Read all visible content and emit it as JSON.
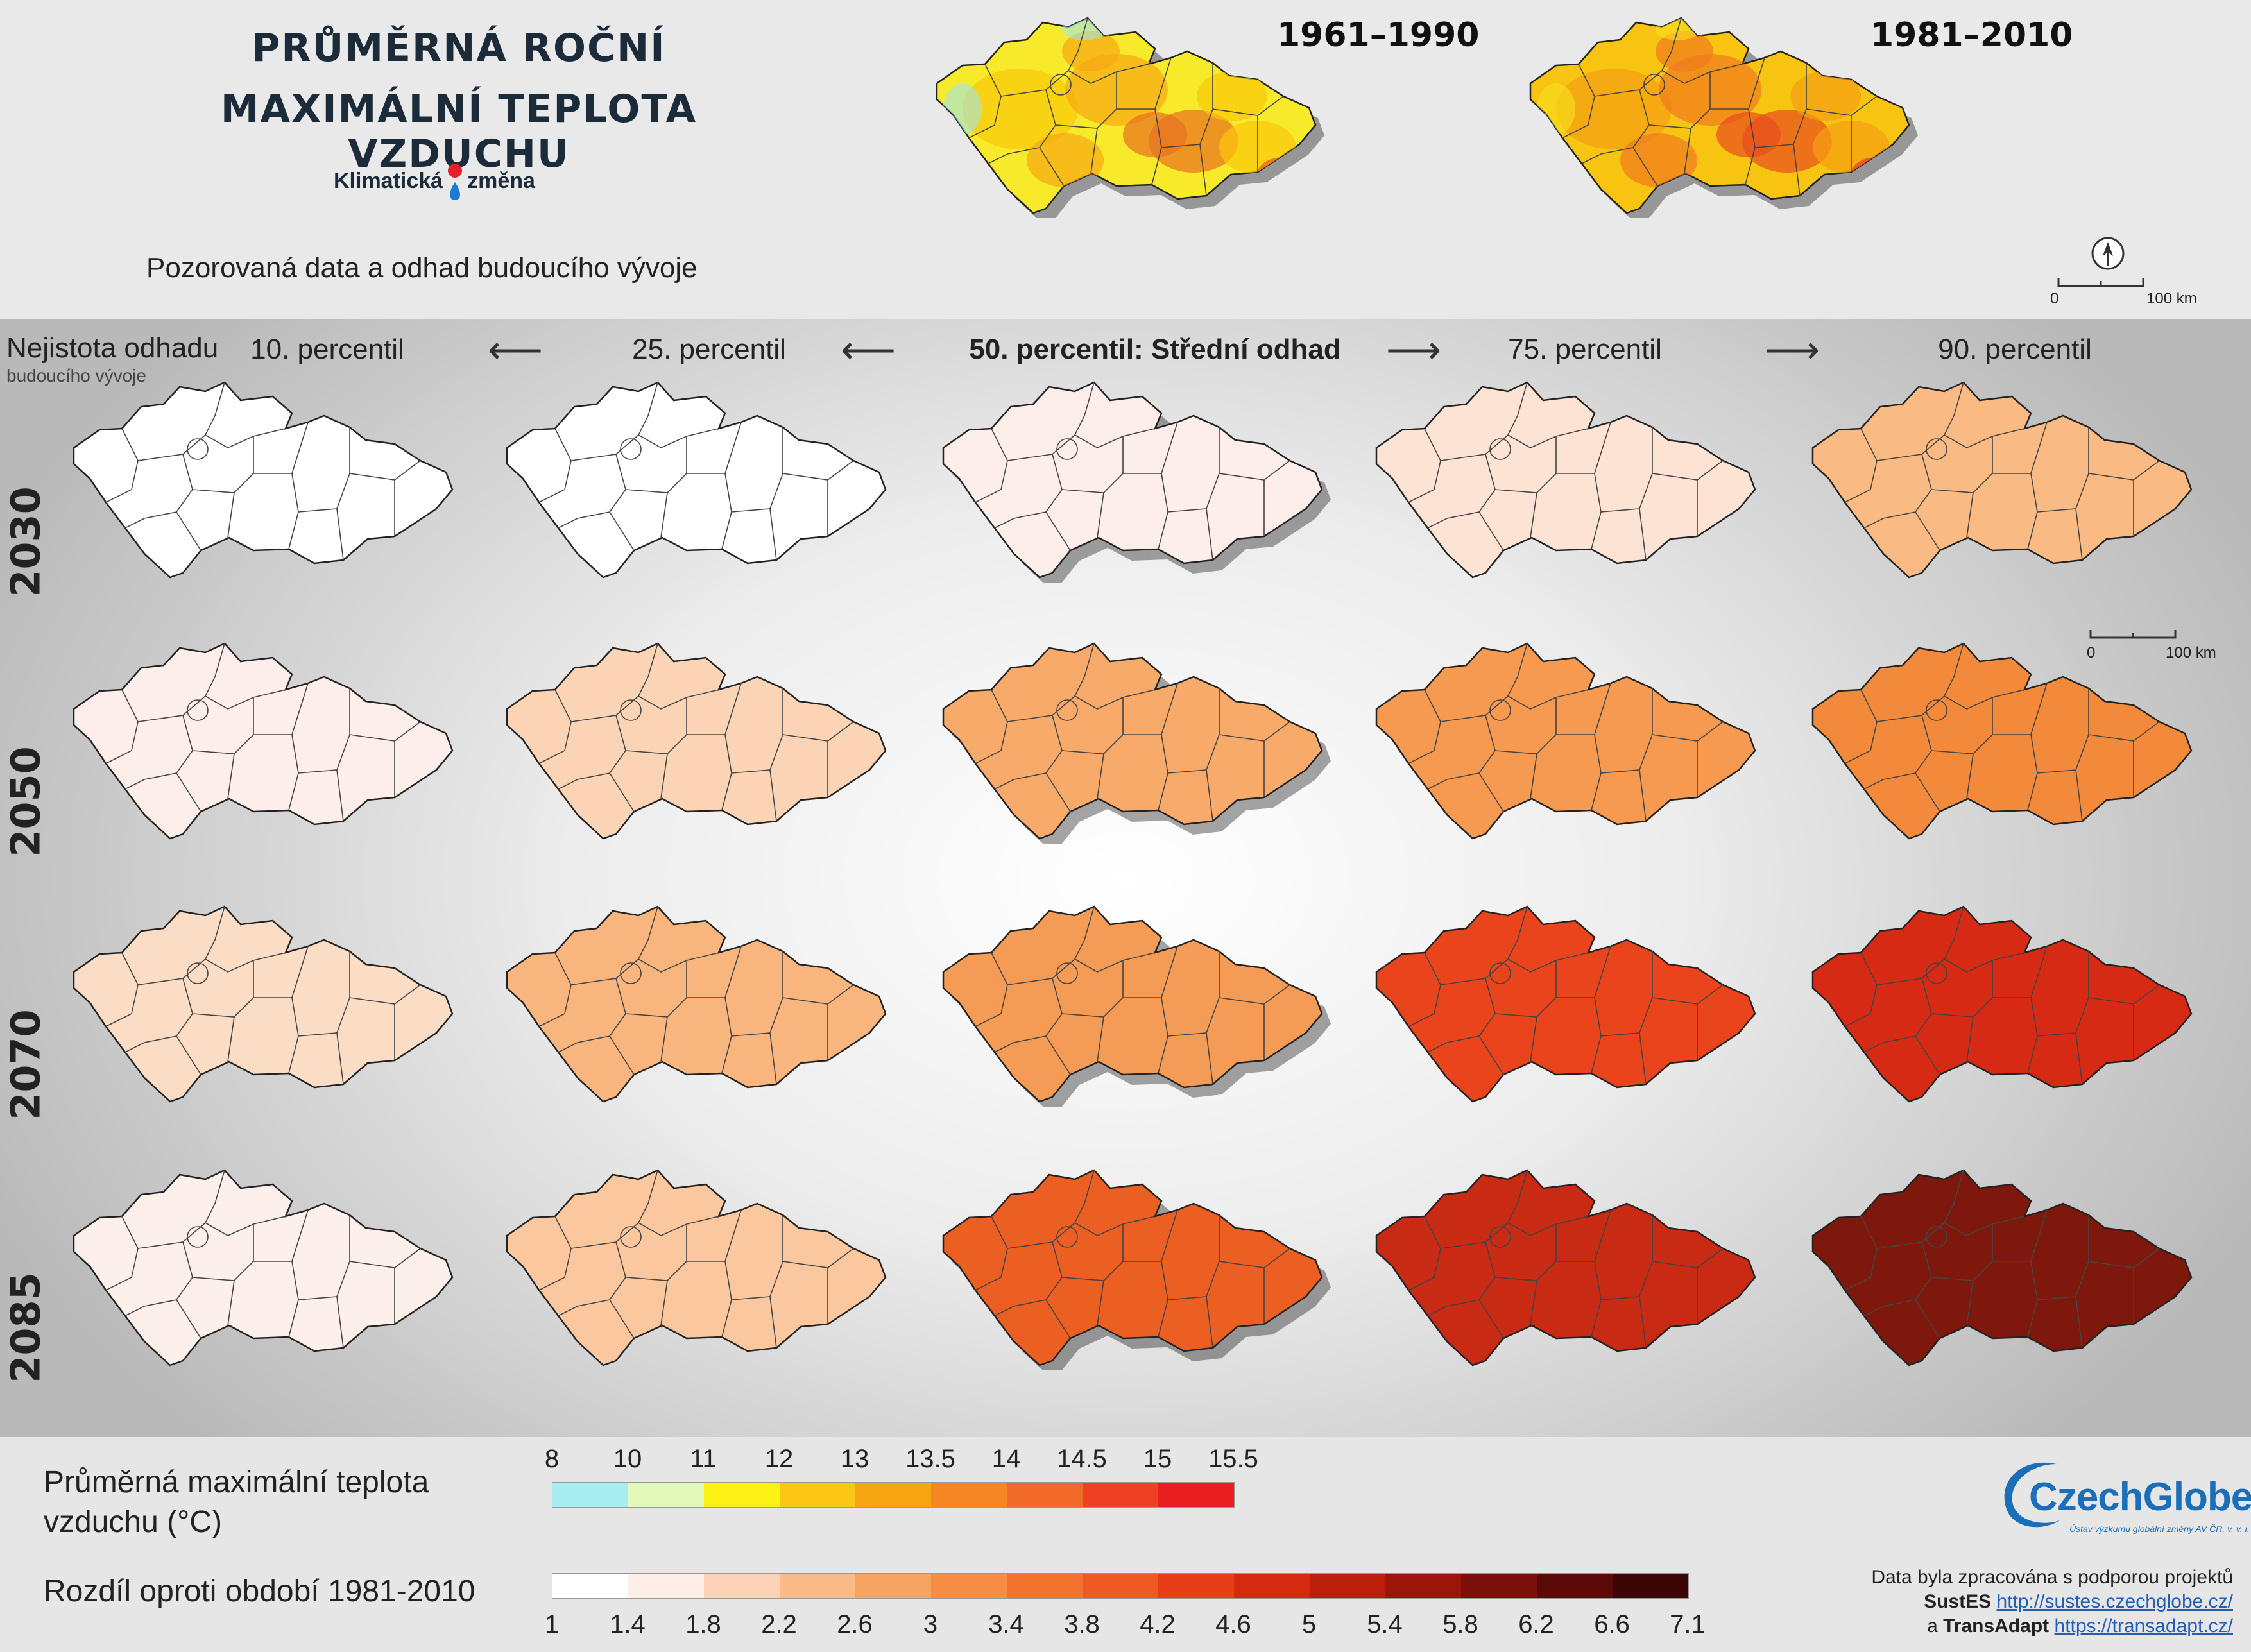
{
  "title_line1": "PRŮMĚRNÁ ROČNÍ",
  "title_line2": "MAXIMÁLNÍ TEPLOTA VZDUCHU",
  "brand_left": "Klimatická",
  "brand_right": "změna",
  "subtitle": "Pozorovaná data a odhad budoucího vývoje",
  "observed": [
    {
      "period": "1961–1990",
      "palette": [
        "#f7ea2b",
        "#f9c70a",
        "#f6a813",
        "#e8711f",
        "#9fe6e9"
      ]
    },
    {
      "period": "1981–2010",
      "palette": [
        "#f8c412",
        "#f5a012",
        "#f07a1e",
        "#e84d1e",
        "#f7e21e"
      ]
    }
  ],
  "scale_top": {
    "start": "0",
    "end": "100 km"
  },
  "scale_mid": {
    "start": "0",
    "end": "100 km"
  },
  "uncertainty_line1": "Nejistota odhadu",
  "uncertainty_line2": "budoucího vývoje",
  "percentiles": [
    "10. percentil",
    "25. percentil",
    "50. percentil: Střední odhad",
    "75. percentil",
    "90. percentil"
  ],
  "years": [
    "2030",
    "2050",
    "2070",
    "2085"
  ],
  "map_colors": [
    [
      "#ffffff",
      "#ffffff",
      "#fdeeea",
      "#fde3d4",
      "#f9ba83"
    ],
    [
      "#fdeee9",
      "#fbd3b5",
      "#f7aa6a",
      "#f59a50",
      "#f38a3b"
    ],
    [
      "#fbdcc5",
      "#f8b67e",
      "#f49c55",
      "#e9441c",
      "#d72a14"
    ],
    [
      "#fdefea",
      "#fac79f",
      "#ec5f22",
      "#c82a13",
      "#7e170c"
    ]
  ],
  "legend_abs_title": "Průměrná maximální teplota vzduchu (°C)",
  "legend_abs_labels": [
    "8",
    "10",
    "11",
    "12",
    "13",
    "13.5",
    "14",
    "14.5",
    "15",
    "15.5"
  ],
  "legend_abs_colors": [
    "#a8eef0",
    "#e3f9b9",
    "#fbf213",
    "#fac714",
    "#f8a514",
    "#f68523",
    "#f26a2a",
    "#ee4124",
    "#e91e21"
  ],
  "legend_diff_title": "Rozdíl oproti období 1981-2010",
  "legend_diff_labels": [
    "1",
    "1.4",
    "1.8",
    "2.2",
    "2.6",
    "3",
    "3.4",
    "3.8",
    "4.2",
    "4.6",
    "5",
    "5.4",
    "5.8",
    "6.2",
    "6.6",
    "7.1"
  ],
  "legend_diff_colors": [
    "#ffffff",
    "#fdeee8",
    "#fbd4b7",
    "#f9bb8a",
    "#f7a463",
    "#f58d44",
    "#f27330",
    "#ee5a23",
    "#e83e18",
    "#d52a10",
    "#bb1e0c",
    "#9a160b",
    "#7a1009",
    "#5a0a07",
    "#3a0505"
  ],
  "logo": "CzechGlobe",
  "logo_tag": "Ústav výzkumu globální změny AV ČR, v. v. i.",
  "credit_line1": "Data byla zpracována s podporou projektů",
  "credit_p1_name": "SustES",
  "credit_p1_url": "http://sustes.czechglobe.cz/",
  "credit_and": "a",
  "credit_p2_name": "TransAdapt",
  "credit_p2_url": "https://transadapt.cz/"
}
